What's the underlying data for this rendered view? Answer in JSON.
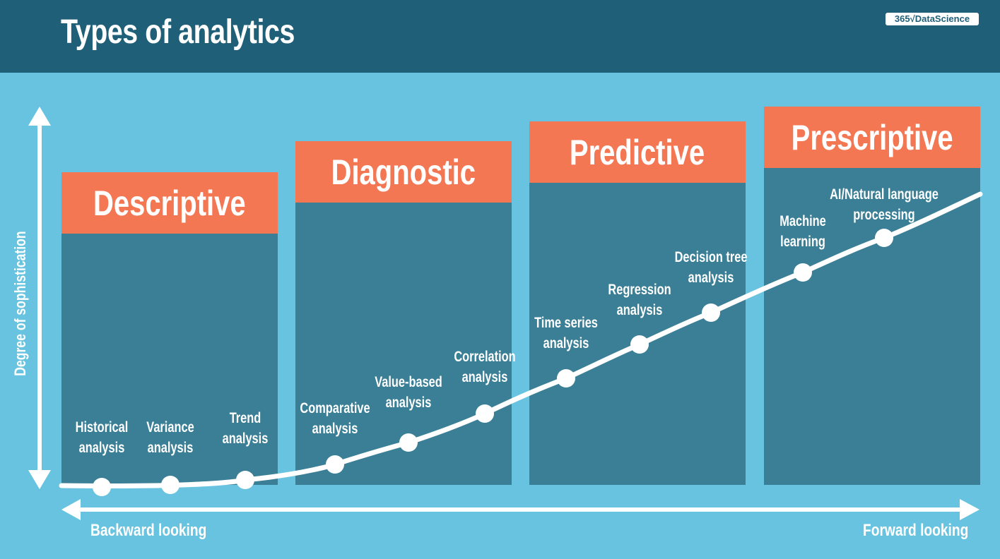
{
  "header": {
    "title": "Types of analytics",
    "logo_text": "365√DataScience"
  },
  "panels": [
    {
      "title": "Descriptive"
    },
    {
      "title": "Diagnostic"
    },
    {
      "title": "Predictive"
    },
    {
      "title": "Prescriptive"
    }
  ],
  "points": [
    {
      "label": "Historical\nanalysis"
    },
    {
      "label": "Variance\nanalysis"
    },
    {
      "label": "Trend\nanalysis"
    },
    {
      "label": "Comparative\nanalysis"
    },
    {
      "label": "Value-based\nanalysis"
    },
    {
      "label": "Correlation\nanalysis"
    },
    {
      "label": "Time series\nanalysis"
    },
    {
      "label": "Regression\nanalysis"
    },
    {
      "label": "Decision tree\nanalysis"
    },
    {
      "label": "Machine\nlearning"
    },
    {
      "label": "AI/Natural language\nprocessing"
    }
  ],
  "axes": {
    "y_label": "Degree of sophistication",
    "x_left_label": "Backward looking",
    "x_right_label": "Forward looking"
  },
  "colors": {
    "background": "#67c3df",
    "header": "#1f5f78",
    "panel": "#3a7f95",
    "panel_head": "#f47754",
    "white": "#ffffff"
  }
}
